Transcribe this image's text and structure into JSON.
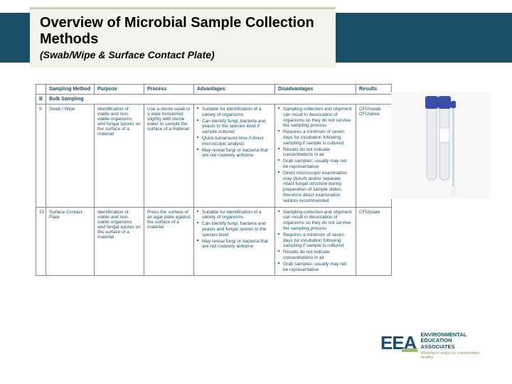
{
  "header": {
    "title": "Overview of Microbial Sample Collection Methods",
    "subtitle": "(Swab/Wipe & Surface Contact Plate)"
  },
  "table": {
    "columns": [
      "",
      "Sampling Method",
      "Purpose",
      "Process",
      "Advantages",
      "Disadvantages",
      "Results"
    ],
    "section_row": {
      "num": "B",
      "label": "Bulk Sampling"
    },
    "rows": [
      {
        "num": "9",
        "method": "Swab / Wipe",
        "purpose": "Identification of viable and non-viable organisms and fungal spores on the surface of a material",
        "process": "Use a sterile swab or a wipe moistened slightly with sterile water to sample the surface of a material",
        "advantages": [
          "Suitable for identification of a variety of organisms",
          "Can identify fungi, bacteria and yeasts to the species level if sample cultured",
          "Quick turnaround time if direct microscopic analysis",
          "May reveal fungi or bacteria that are not routinely airborne"
        ],
        "disadvantages": [
          "Sampling collection and shipment can result in desiccation of organisms so they do not survive the sampling process",
          "Requires a minimum of seven days for incubation following sampling if sample is cultured",
          "Results do not indicate concentrations in air",
          "Grab samples; usually may not be representative",
          "Direct microscopic examination may disturb and/or separate intact fungal structure during preparation of sample slides; therefore direct examination seldom recommended"
        ],
        "results": "CFU/swab\nCFU/area"
      },
      {
        "num": "10",
        "method": "Surface Contact Plate",
        "purpose": "Identification of viable and non-viable organisms and fungal spores on the surface of a material",
        "process": "Press the surface of an agar plate against the surface of a material",
        "advantages": [
          "Suitable for identification of a variety of organisms",
          "Can identify fungi, bacteria and yeasts and fungal spores to the species level",
          "May reveal fungi or bacteria that are not routinely airborne"
        ],
        "disadvantages": [
          "Sampling collection and shipment can result in desiccation of organisms so they do not survive the sampling process",
          "Requires a minimum of seven days for incubation following sampling if sample is cultured",
          "Results do not indicate concentrations in air",
          "Grab samples; usually may not be representative"
        ],
        "results": "CFU/plate"
      }
    ]
  },
  "logo": {
    "mark": "EEA",
    "line1": "ENVIRONMENTAL",
    "line2": "EDUCATION",
    "line3": "ASSOCIATES",
    "tagline": "Working to make our communities healthy"
  },
  "colors": {
    "banner": "#1a4d66",
    "card_bg": "#f0f4ec",
    "card_border": "#c8d4b8",
    "text_accent": "#1a4d66",
    "logo_green": "#9db87a"
  }
}
